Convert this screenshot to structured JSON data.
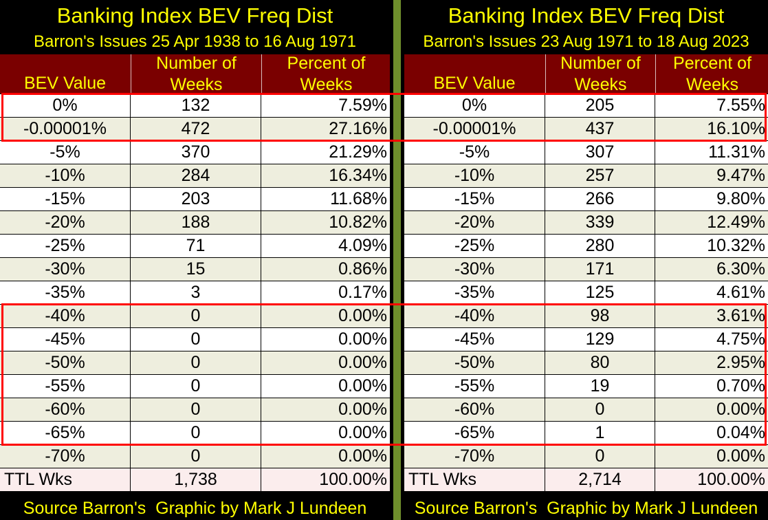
{
  "chart_data": [
    {
      "type": "table",
      "title": "Banking Index BEV Freq Dist",
      "subtitle": "Barron's Issues 25 Apr 1938 to 16 Aug 1971",
      "columns": {
        "bev": "BEV Value",
        "num_1": "Number of",
        "num_2": "Weeks",
        "pct_1": "Percent of",
        "pct_2": "Weeks"
      },
      "rows": [
        {
          "bev": "0%",
          "weeks": "132",
          "pct": "7.59%"
        },
        {
          "bev": "-0.00001%",
          "weeks": "472",
          "pct": "27.16%"
        },
        {
          "bev": "-5%",
          "weeks": "370",
          "pct": "21.29%"
        },
        {
          "bev": "-10%",
          "weeks": "284",
          "pct": "16.34%"
        },
        {
          "bev": "-15%",
          "weeks": "203",
          "pct": "11.68%"
        },
        {
          "bev": "-20%",
          "weeks": "188",
          "pct": "10.82%"
        },
        {
          "bev": "-25%",
          "weeks": "71",
          "pct": "4.09%"
        },
        {
          "bev": "-30%",
          "weeks": "15",
          "pct": "0.86%"
        },
        {
          "bev": "-35%",
          "weeks": "3",
          "pct": "0.17%"
        },
        {
          "bev": "-40%",
          "weeks": "0",
          "pct": "0.00%"
        },
        {
          "bev": "-45%",
          "weeks": "0",
          "pct": "0.00%"
        },
        {
          "bev": "-50%",
          "weeks": "0",
          "pct": "0.00%"
        },
        {
          "bev": "-55%",
          "weeks": "0",
          "pct": "0.00%"
        },
        {
          "bev": "-60%",
          "weeks": "0",
          "pct": "0.00%"
        },
        {
          "bev": "-65%",
          "weeks": "0",
          "pct": "0.00%"
        },
        {
          "bev": "-70%",
          "weeks": "0",
          "pct": "0.00%"
        }
      ],
      "total": {
        "label": "TTL Wks",
        "weeks": "1,738",
        "pct": "100.00%"
      },
      "footer": "Source Barron's  Graphic by Mark J Lundeen"
    },
    {
      "type": "table",
      "title": "Banking Index BEV Freq Dist",
      "subtitle": "Barron's Issues 23 Aug 1971 to 18 Aug 2023",
      "columns": {
        "bev": "BEV Value",
        "num_1": "Number of",
        "num_2": "Weeks",
        "pct_1": "Percent of",
        "pct_2": "Weeks"
      },
      "rows": [
        {
          "bev": "0%",
          "weeks": "205",
          "pct": "7.55%"
        },
        {
          "bev": "-0.00001%",
          "weeks": "437",
          "pct": "16.10%"
        },
        {
          "bev": "-5%",
          "weeks": "307",
          "pct": "11.31%"
        },
        {
          "bev": "-10%",
          "weeks": "257",
          "pct": "9.47%"
        },
        {
          "bev": "-15%",
          "weeks": "266",
          "pct": "9.80%"
        },
        {
          "bev": "-20%",
          "weeks": "339",
          "pct": "12.49%"
        },
        {
          "bev": "-25%",
          "weeks": "280",
          "pct": "10.32%"
        },
        {
          "bev": "-30%",
          "weeks": "171",
          "pct": "6.30%"
        },
        {
          "bev": "-35%",
          "weeks": "125",
          "pct": "4.61%"
        },
        {
          "bev": "-40%",
          "weeks": "98",
          "pct": "3.61%"
        },
        {
          "bev": "-45%",
          "weeks": "129",
          "pct": "4.75%"
        },
        {
          "bev": "-50%",
          "weeks": "80",
          "pct": "2.95%"
        },
        {
          "bev": "-55%",
          "weeks": "19",
          "pct": "0.70%"
        },
        {
          "bev": "-60%",
          "weeks": "0",
          "pct": "0.00%"
        },
        {
          "bev": "-65%",
          "weeks": "1",
          "pct": "0.04%"
        },
        {
          "bev": "-70%",
          "weeks": "0",
          "pct": "0.00%"
        }
      ],
      "total": {
        "label": "TTL Wks",
        "weeks": "2,714",
        "pct": "100.00%"
      },
      "footer": "Source Barron's  Graphic by Mark J Lundeen"
    }
  ],
  "colors": {
    "background": "#000000",
    "title_text": "#ffff00",
    "header_fill": "#7a0000",
    "divider": "#6f8f2c",
    "highlight_box": "#ff0000",
    "row_white": "#ffffff",
    "row_tint": "#eeeede",
    "row_total": "#fbeded"
  },
  "highlights": [
    {
      "first_row": 0,
      "last_row": 1
    },
    {
      "first_row": 9,
      "last_row": 14
    }
  ]
}
